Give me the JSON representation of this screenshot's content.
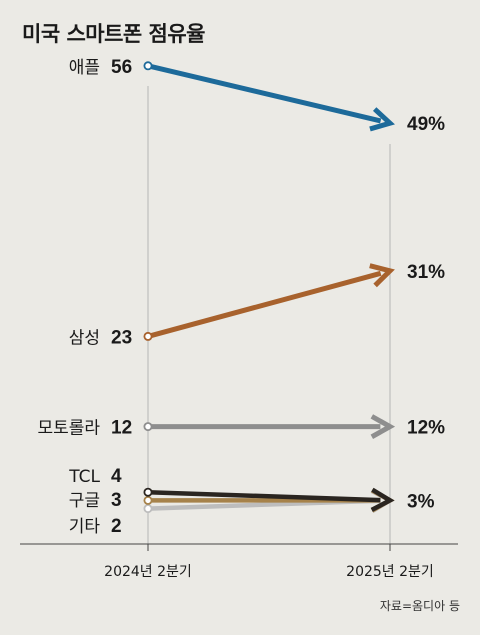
{
  "chart_data": {
    "type": "line",
    "title": "미국 스마트폰 점유율",
    "x": [
      "2024년 2분기",
      "2025년 2분기"
    ],
    "ylim": [
      0,
      60
    ],
    "grid": false,
    "series": [
      {
        "name": "애플",
        "values": [
          56,
          49
        ],
        "start_label": "56",
        "end_label": "49%",
        "color": "#1d6a9a"
      },
      {
        "name": "삼성",
        "values": [
          23,
          31
        ],
        "start_label": "23",
        "end_label": "31%",
        "color": "#a8622d"
      },
      {
        "name": "모토롤라",
        "values": [
          12,
          12
        ],
        "start_label": "12",
        "end_label": "12%",
        "color": "#8e8e8e"
      },
      {
        "name": "TCL",
        "values": [
          4,
          3
        ],
        "start_label": "4",
        "end_label": "",
        "color": "#2a2520"
      },
      {
        "name": "구글",
        "values": [
          3,
          3
        ],
        "start_label": "3",
        "end_label": "",
        "color": "#a6824a"
      },
      {
        "name": "기타",
        "values": [
          2,
          3
        ],
        "start_label": "2",
        "end_label": "",
        "color": "#bdbdbd"
      }
    ],
    "shared_end_label": "3%",
    "source": "자료=옴디아 등"
  }
}
